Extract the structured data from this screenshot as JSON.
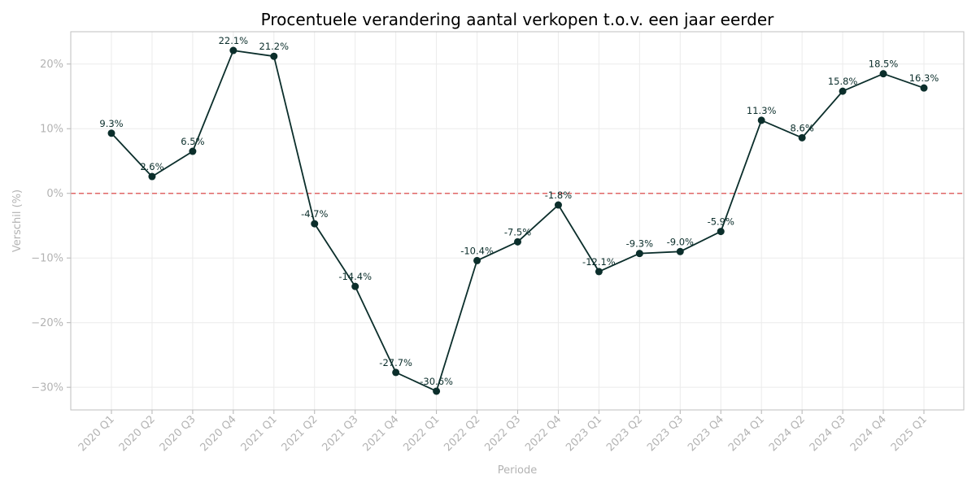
{
  "colors": {
    "line": "#0b2e2b",
    "reference_line": "#e06666",
    "axis_text": "#b3b3b3",
    "grid": "#ebebeb",
    "frame": "#bfbfbf"
  },
  "chart_data": {
    "type": "line",
    "title": "Procentuele verandering aantal verkopen t.o.v. een jaar eerder",
    "xlabel": "Periode",
    "ylabel": "Verschil (%)",
    "ylim": [
      -33.5,
      25
    ],
    "yticks": [
      -30,
      -20,
      -10,
      0,
      10,
      20
    ],
    "ytick_labels": [
      "−30%",
      "−20%",
      "−10%",
      "0%",
      "10%",
      "20%"
    ],
    "grid": true,
    "reference_line": {
      "y": 0,
      "style": "dashed"
    },
    "categories": [
      "2020 Q1",
      "2020 Q2",
      "2020 Q3",
      "2020 Q4",
      "2021 Q1",
      "2021 Q2",
      "2021 Q3",
      "2021 Q4",
      "2022 Q1",
      "2022 Q2",
      "2022 Q3",
      "2022 Q4",
      "2023 Q1",
      "2023 Q2",
      "2023 Q3",
      "2023 Q4",
      "2024 Q1",
      "2024 Q2",
      "2024 Q3",
      "2024 Q4",
      "2025 Q1"
    ],
    "series": [
      {
        "values": [
          9.3,
          2.6,
          6.5,
          22.1,
          21.2,
          -4.7,
          -14.4,
          -27.7,
          -30.6,
          -10.4,
          -7.5,
          -1.8,
          -12.1,
          -9.3,
          -9.0,
          -5.9,
          11.3,
          8.6,
          15.8,
          18.5,
          16.3
        ],
        "labels": [
          "9.3%",
          "2.6%",
          "6.5%",
          "22.1%",
          "21.2%",
          "-4.7%",
          "-14.4%",
          "-27.7%",
          "-30.6%",
          "-10.4%",
          "-7.5%",
          "-1.8%",
          "-12.1%",
          "-9.3%",
          "-9.0%",
          "-5.9%",
          "11.3%",
          "8.6%",
          "15.8%",
          "18.5%",
          "16.3%"
        ]
      }
    ]
  }
}
